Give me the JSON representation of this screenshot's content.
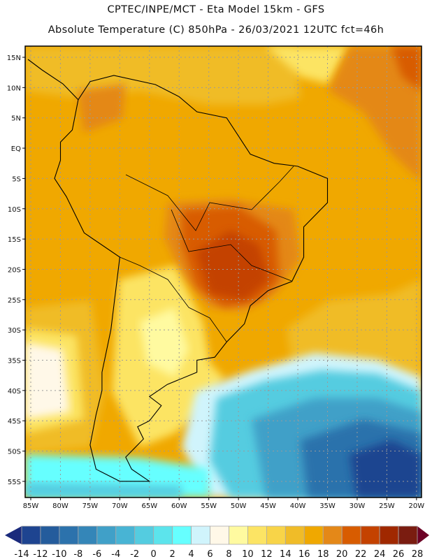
{
  "header": {
    "title_line1": "CPTEC/INPE/MCT -  Eta Model 15km - GFS",
    "title_line2": "Absolute Temperature (C) 850hPa - 26/03/2021 12UTC fct=46h"
  },
  "map": {
    "lat_labels": [
      "15N",
      "10N",
      "5N",
      "EQ",
      "5S",
      "10S",
      "15S",
      "20S",
      "25S",
      "30S",
      "35S",
      "40S",
      "45S",
      "50S",
      "55S"
    ],
    "lat_values": [
      15,
      10,
      5,
      0,
      -5,
      -10,
      -15,
      -20,
      -25,
      -30,
      -35,
      -40,
      -45,
      -50,
      -55
    ],
    "lon_labels": [
      "85W",
      "80W",
      "75W",
      "70W",
      "65W",
      "60W",
      "55W",
      "50W",
      "45W",
      "40W",
      "35W",
      "30W",
      "25W",
      "20W"
    ],
    "lon_values": [
      -85,
      -80,
      -75,
      -70,
      -65,
      -60,
      -55,
      -50,
      -45,
      -40,
      -35,
      -30,
      -25,
      -20
    ]
  },
  "colorbar": {
    "labels": [
      "-14",
      "-12",
      "-10",
      "-8",
      "-6",
      "-4",
      "-2",
      "0",
      "2",
      "4",
      "6",
      "8",
      "10",
      "12",
      "14",
      "16",
      "18",
      "20",
      "22",
      "24",
      "26",
      "28"
    ],
    "colors": [
      "#1e4490",
      "#245c9c",
      "#2c72ac",
      "#3486b8",
      "#40a0c8",
      "#48b4d4",
      "#54cce0",
      "#5ce4ec",
      "#66ffff",
      "#d0f4fc",
      "#fff8e8",
      "#fffaa0",
      "#fce464",
      "#f8d448",
      "#f0bc28",
      "#f0a800",
      "#e48818",
      "#d85c00",
      "#c44200",
      "#a02800",
      "#7a1c10"
    ],
    "low_color": "#1a2a7c",
    "high_color": "#6c0024"
  }
}
